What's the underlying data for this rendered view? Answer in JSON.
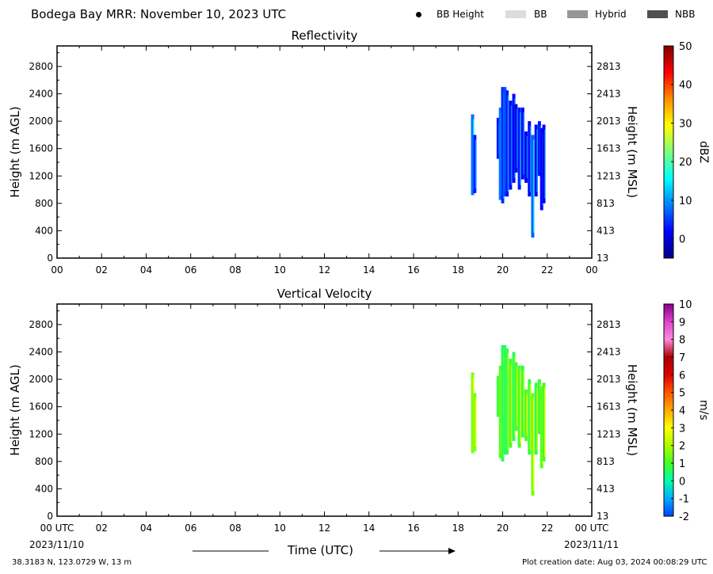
{
  "header": {
    "title": "Bodega Bay MRR:  November 10, 2023 UTC",
    "legend": [
      {
        "label": "BB Height",
        "kind": "dot",
        "color": "#000000"
      },
      {
        "label": "BB",
        "kind": "swatch",
        "color": "#dcdcdc"
      },
      {
        "label": "Hybrid",
        "kind": "swatch",
        "color": "#969696"
      },
      {
        "label": "NBB",
        "kind": "swatch",
        "color": "#505050"
      }
    ]
  },
  "footer": {
    "coords": "38.3183 N, 123.0729 W, 13 m",
    "creation_date": "Plot creation date: Aug 03, 2024 00:08:29 UTC",
    "time_label": "Time (UTC)",
    "start_date": "2023/11/10",
    "end_date": "2023/11/11"
  },
  "chart_data": [
    {
      "type": "heatmap",
      "title": "Reflectivity",
      "ylabel": "Height (m AGL)",
      "ylabel_right": "Height (m MSL)",
      "x_ticks": [
        "00",
        "02",
        "04",
        "06",
        "08",
        "10",
        "12",
        "14",
        "16",
        "18",
        "20",
        "22",
        "00"
      ],
      "xlim": [
        0,
        24
      ],
      "y_ticks": [
        0,
        400,
        800,
        1200,
        1600,
        2000,
        2400,
        2800
      ],
      "y_ticks_right": [
        13,
        413,
        813,
        1213,
        1613,
        2013,
        2413,
        2813
      ],
      "ylim": [
        0,
        3100
      ],
      "colorbar": {
        "label": "dBZ",
        "range": [
          -5,
          50
        ],
        "ticks": [
          0,
          10,
          20,
          30,
          40,
          50
        ],
        "colors": [
          "#00007f",
          "#0000ff",
          "#0080ff",
          "#00ffff",
          "#7dff7a",
          "#ffff00",
          "#ff8c00",
          "#ff0000",
          "#7f0000"
        ]
      },
      "columns": [
        {
          "time": 18.65,
          "ybot": 920,
          "ytop": 2100,
          "value": 8
        },
        {
          "time": 18.75,
          "ybot": 950,
          "ytop": 1800,
          "value": 3
        },
        {
          "time": 19.8,
          "ybot": 1450,
          "ytop": 2050,
          "value": 3
        },
        {
          "time": 19.9,
          "ybot": 850,
          "ytop": 2200,
          "value": 8
        },
        {
          "time": 20.0,
          "ybot": 800,
          "ytop": 2500,
          "value": 4
        },
        {
          "time": 20.1,
          "ybot": 900,
          "ytop": 2500,
          "value": 6
        },
        {
          "time": 20.2,
          "ybot": 900,
          "ytop": 2450,
          "value": 3
        },
        {
          "time": 20.35,
          "ybot": 1000,
          "ytop": 2300,
          "value": 2
        },
        {
          "time": 20.5,
          "ybot": 1100,
          "ytop": 2400,
          "value": 2
        },
        {
          "time": 20.6,
          "ybot": 1250,
          "ytop": 2250,
          "value": 1
        },
        {
          "time": 20.75,
          "ybot": 1000,
          "ytop": 2200,
          "value": 3
        },
        {
          "time": 20.9,
          "ybot": 1150,
          "ytop": 2200,
          "value": 2
        },
        {
          "time": 21.05,
          "ybot": 1100,
          "ytop": 1850,
          "value": 1
        },
        {
          "time": 21.2,
          "ybot": 900,
          "ytop": 2000,
          "value": 2
        },
        {
          "time": 21.35,
          "ybot": 300,
          "ytop": 1800,
          "value": 7
        },
        {
          "time": 21.5,
          "ybot": 900,
          "ytop": 1950,
          "value": 2
        },
        {
          "time": 21.65,
          "ybot": 1200,
          "ytop": 2000,
          "value": 3
        },
        {
          "time": 21.75,
          "ybot": 700,
          "ytop": 1900,
          "value": 2
        },
        {
          "time": 21.85,
          "ybot": 800,
          "ytop": 1950,
          "value": 1
        }
      ]
    },
    {
      "type": "heatmap",
      "title": "Vertical Velocity",
      "ylabel": "Height (m AGL)",
      "ylabel_right": "Height (m MSL)",
      "x_ticks": [
        "00 UTC",
        "02",
        "04",
        "06",
        "08",
        "10",
        "12",
        "14",
        "16",
        "18",
        "20",
        "22",
        "00 UTC"
      ],
      "xlim": [
        0,
        24
      ],
      "y_ticks": [
        0,
        400,
        800,
        1200,
        1600,
        2000,
        2400,
        2800
      ],
      "y_ticks_right": [
        13,
        413,
        813,
        1213,
        1613,
        2013,
        2413,
        2813
      ],
      "ylim": [
        0,
        3100
      ],
      "colorbar": {
        "label": "m/s",
        "range": [
          -2,
          10
        ],
        "ticks": [
          -2,
          -1,
          0,
          1,
          2,
          3,
          4,
          5,
          6,
          7,
          8,
          9,
          10
        ],
        "colors": [
          "#0044ff",
          "#00aaff",
          "#00ffaa",
          "#44ff22",
          "#aaff00",
          "#ffff00",
          "#ffaa00",
          "#ff5500",
          "#dd0000",
          "#aa0000",
          "#ff88dd",
          "#dd44cc",
          "#880088"
        ]
      },
      "columns": [
        {
          "time": 18.65,
          "ybot": 920,
          "ytop": 2100,
          "value": 1.6
        },
        {
          "time": 18.75,
          "ybot": 950,
          "ytop": 1800,
          "value": 1.5
        },
        {
          "time": 19.8,
          "ybot": 1450,
          "ytop": 2050,
          "value": 0.8
        },
        {
          "time": 19.9,
          "ybot": 850,
          "ytop": 2200,
          "value": 1.2
        },
        {
          "time": 20.0,
          "ybot": 800,
          "ytop": 2500,
          "value": 0.6
        },
        {
          "time": 20.1,
          "ybot": 900,
          "ytop": 2500,
          "value": 0.5
        },
        {
          "time": 20.2,
          "ybot": 900,
          "ytop": 2450,
          "value": 0.7
        },
        {
          "time": 20.35,
          "ybot": 1000,
          "ytop": 2300,
          "value": 0.9
        },
        {
          "time": 20.5,
          "ybot": 1100,
          "ytop": 2400,
          "value": 0.6
        },
        {
          "time": 20.6,
          "ybot": 1250,
          "ytop": 2250,
          "value": 0.8
        },
        {
          "time": 20.75,
          "ybot": 1000,
          "ytop": 2200,
          "value": 1.0
        },
        {
          "time": 20.9,
          "ybot": 1150,
          "ytop": 2200,
          "value": 0.7
        },
        {
          "time": 21.05,
          "ybot": 1100,
          "ytop": 1850,
          "value": 1.1
        },
        {
          "time": 21.2,
          "ybot": 900,
          "ytop": 2000,
          "value": 0.8
        },
        {
          "time": 21.35,
          "ybot": 300,
          "ytop": 1800,
          "value": 1.4
        },
        {
          "time": 21.5,
          "ybot": 900,
          "ytop": 1950,
          "value": 0.6
        },
        {
          "time": 21.65,
          "ybot": 1200,
          "ytop": 2000,
          "value": 0.9
        },
        {
          "time": 21.75,
          "ybot": 700,
          "ytop": 1900,
          "value": 1.2
        },
        {
          "time": 21.85,
          "ybot": 800,
          "ytop": 1950,
          "value": 1.0
        }
      ]
    }
  ]
}
